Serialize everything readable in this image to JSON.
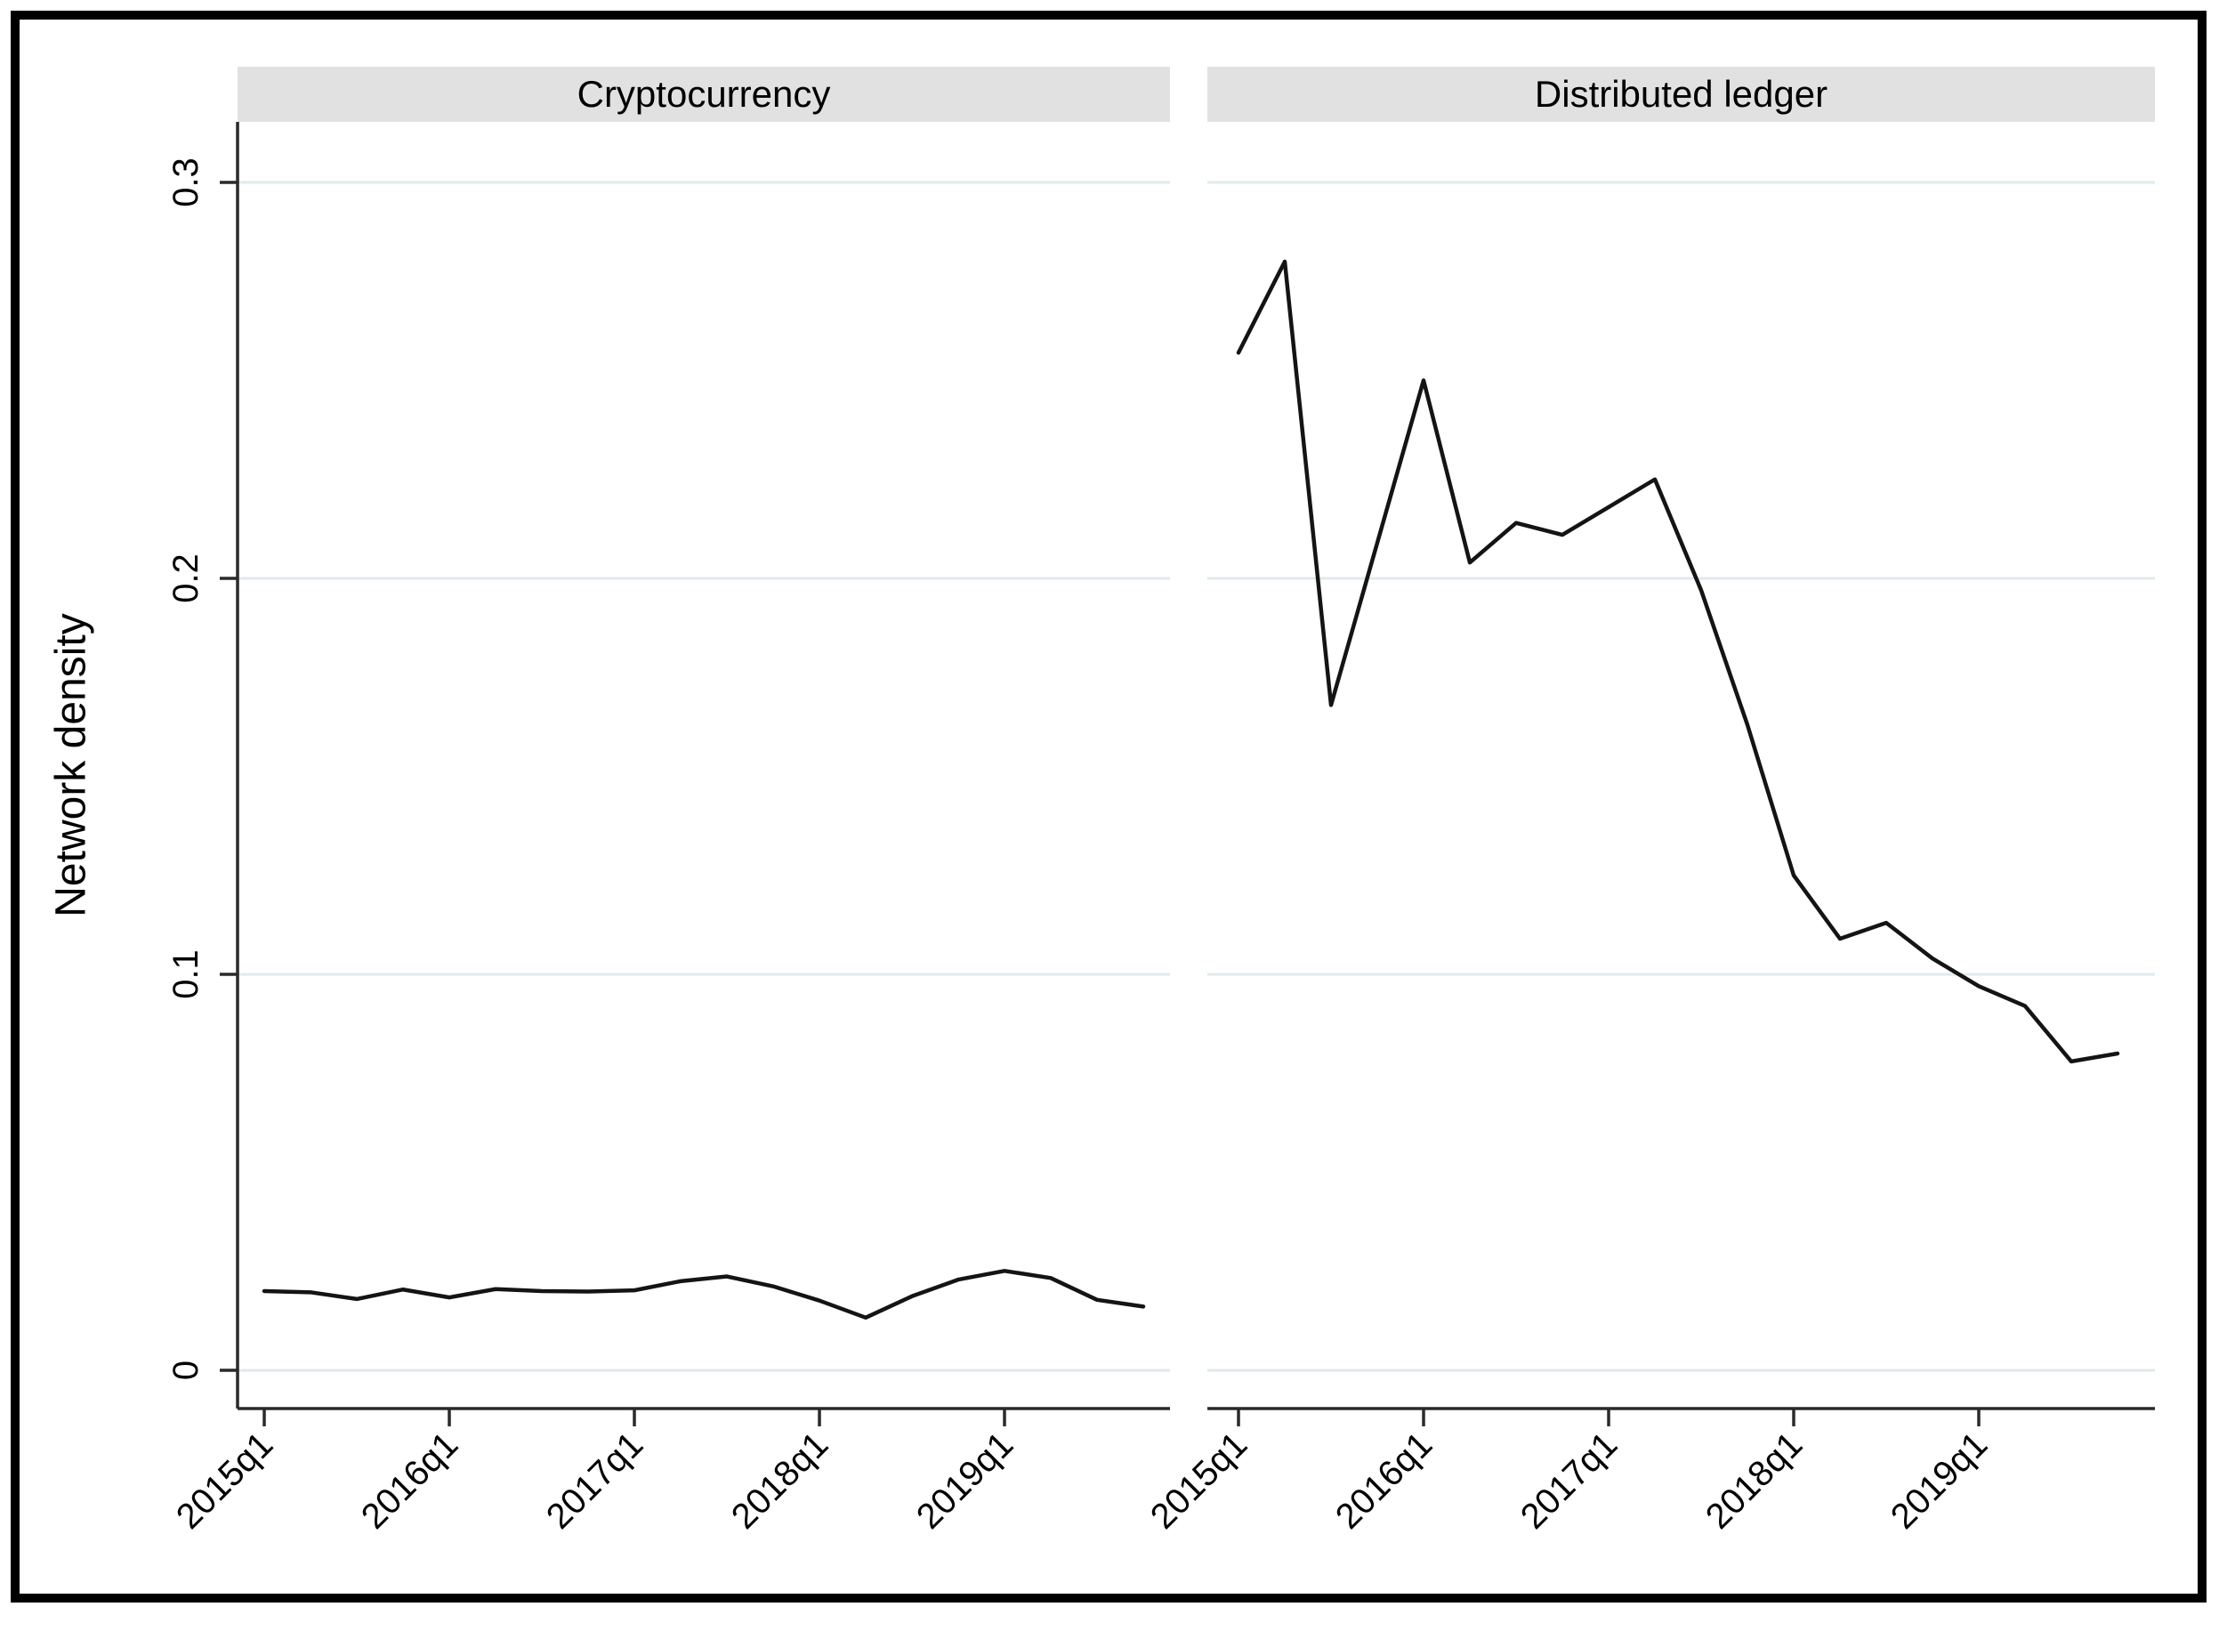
{
  "figure": {
    "kind": "two-panel line chart"
  },
  "chart_data": {
    "type": "line",
    "title": "",
    "ylabel": "Network density",
    "xlabel": "",
    "legend": "none",
    "grid": "horizontal",
    "categories": [
      "2015q1",
      "2015q2",
      "2015q3",
      "2015q4",
      "2016q1",
      "2016q2",
      "2016q3",
      "2016q4",
      "2017q1",
      "2017q2",
      "2017q3",
      "2017q4",
      "2018q1",
      "2018q2",
      "2018q3",
      "2018q4",
      "2019q1",
      "2019q2",
      "2019q3",
      "2019q4"
    ],
    "x_tick_labels": [
      "2015q1",
      "2016q1",
      "2017q1",
      "2018q1",
      "2019q1"
    ],
    "y_ticks": [
      0,
      0.1,
      0.2,
      0.3
    ],
    "y_tick_labels": [
      "0",
      "0.1",
      "0.2",
      "0.3"
    ],
    "ylim": [
      -0.01,
      0.315
    ],
    "panels": [
      {
        "title": "Cryptocurrency",
        "series_name": "Network density",
        "values": [
          0.02,
          0.0197,
          0.018,
          0.0204,
          0.0184,
          0.0205,
          0.02,
          0.0199,
          0.0202,
          0.0225,
          0.0237,
          0.0212,
          0.0176,
          0.0133,
          0.0187,
          0.0229,
          0.0251,
          0.0233,
          0.0178,
          0.0161
        ]
      },
      {
        "title": "Distributed ledger",
        "series_name": "Network density",
        "values": [
          0.257,
          0.28,
          0.168,
          0.209,
          0.25,
          0.204,
          0.214,
          0.211,
          0.218,
          0.225,
          0.197,
          0.163,
          0.125,
          0.109,
          0.113,
          0.104,
          0.097,
          0.092,
          0.078,
          0.08
        ]
      }
    ],
    "colors": {
      "line": "#141414",
      "grid": "#dfeaec",
      "panel_header_bg": "#e1e1e1",
      "axis": "#2a2a2a",
      "text": "#000000"
    }
  }
}
